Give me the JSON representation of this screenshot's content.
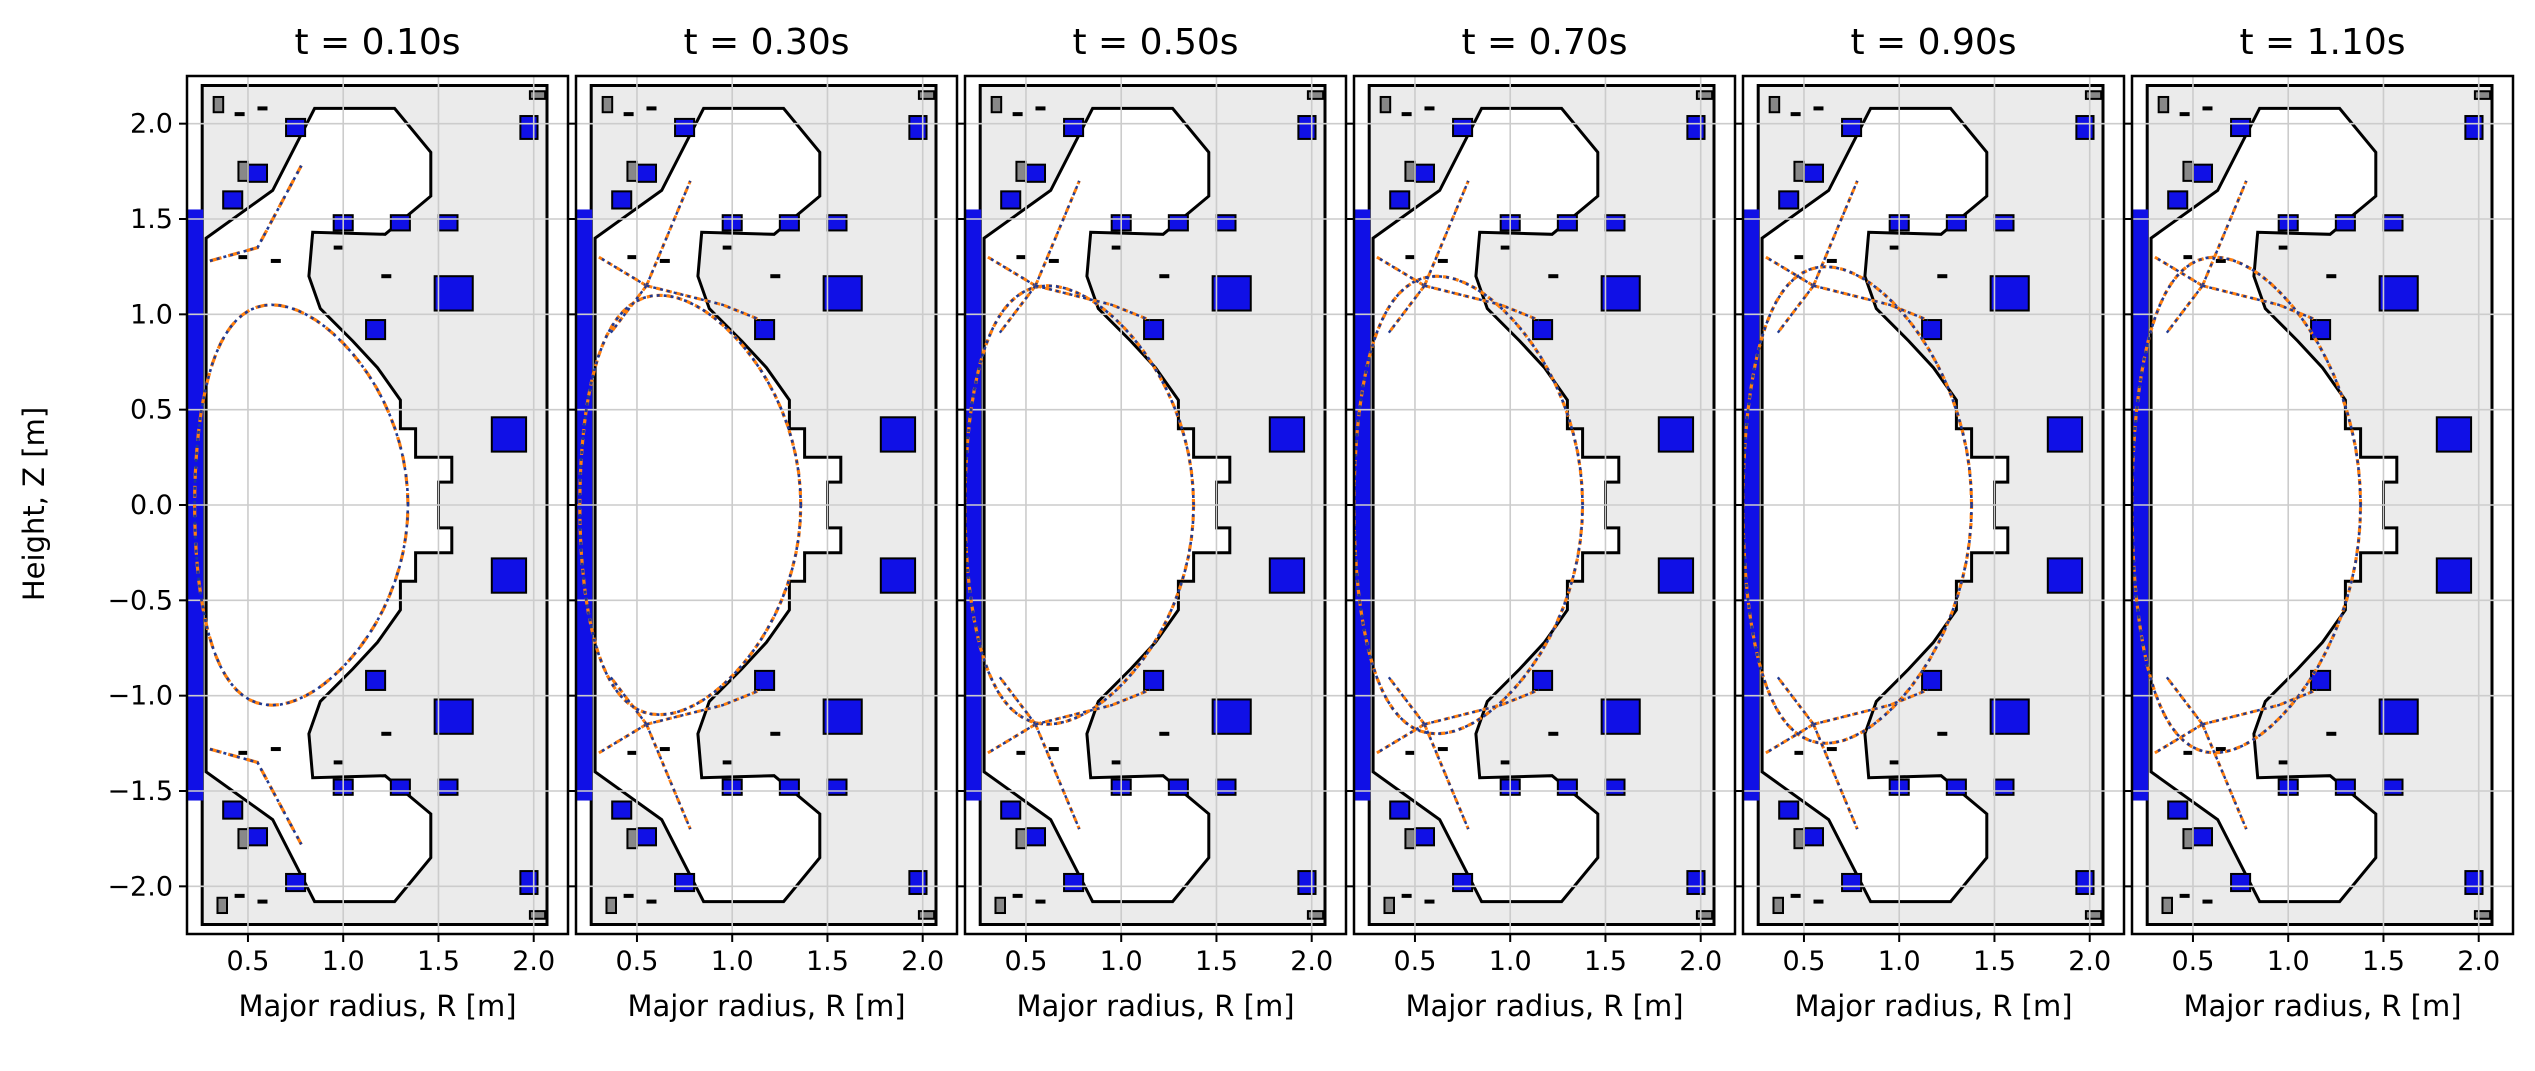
{
  "figure": {
    "panel_times": [
      "0.10",
      "0.30",
      "0.50",
      "0.70",
      "0.90",
      "1.10"
    ],
    "title_prefix": "t = ",
    "title_unit": "s",
    "x_axis_label": "Major radius, R [m]",
    "y_axis_label": "Height, Z [m]",
    "x_ticks": [
      "0.5",
      "1.0",
      "1.5",
      "2.0"
    ],
    "y_ticks": [
      "2.0",
      "1.5",
      "1.0",
      "0.5",
      "0.0",
      "−0.5",
      "−1.0",
      "−1.5",
      "−2.0"
    ],
    "x_range": [
      0.18,
      2.18
    ],
    "y_range": [
      -2.25,
      2.25
    ],
    "colors": {
      "wall_fill": "#ebebeb",
      "coil_fill": "#1010e6",
      "passive_fill": "#888888",
      "boundary_dashed": "#ff7f0e",
      "boundary_dotted": "#1f3a93",
      "grid": "#cccccc"
    },
    "line_styles": [
      "dashed orange boundary",
      "dotted blue boundary"
    ]
  }
}
